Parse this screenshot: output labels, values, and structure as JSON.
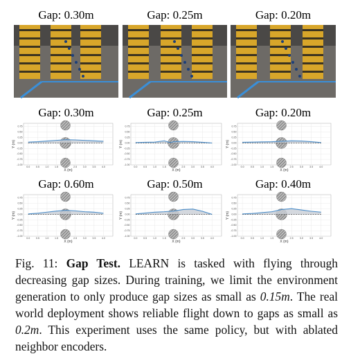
{
  "photos": [
    {
      "title": "Gap: 0.30m"
    },
    {
      "title": "Gap: 0.25m"
    },
    {
      "title": "Gap: 0.20m"
    }
  ],
  "chart_data": [
    {
      "type": "line",
      "title": "Gap: 0.30m",
      "xlabel": "X (m)",
      "ylabel": "Y (m)",
      "xlim": [
        -0.25,
        4.5
      ],
      "ylim": [
        -1.0,
        0.9
      ],
      "xticks": [
        {
          "value": 0,
          "label": "0.0"
        },
        {
          "value": 0.5,
          "label": "0.5"
        },
        {
          "value": 1,
          "label": "1.0"
        },
        {
          "value": 1.5,
          "label": "1.5"
        },
        {
          "value": 2,
          "label": "2.0"
        },
        {
          "value": 2.5,
          "label": "2.5"
        },
        {
          "value": 3,
          "label": "3.0"
        },
        {
          "value": 3.5,
          "label": "3.5"
        },
        {
          "value": 4,
          "label": "4.0"
        }
      ],
      "yticks": [
        {
          "value": 0.75,
          "label": "0.75"
        },
        {
          "value": 0.5,
          "label": "0.50"
        },
        {
          "value": 0.25,
          "label": "0.25"
        },
        {
          "value": 0,
          "label": "0.00"
        },
        {
          "value": -0.25,
          "label": "-0.25"
        },
        {
          "value": -0.5,
          "label": "-0.50"
        },
        {
          "value": -0.75,
          "label": "-0.75"
        },
        {
          "value": -1.0,
          "label": "-1.00"
        }
      ],
      "x": [
        0,
        0.5,
        1,
        1.5,
        2,
        2.5,
        3,
        3.5,
        4
      ],
      "series": [
        {
          "color": "#4a8cc8",
          "values": [
            0.04,
            0.06,
            0.09,
            0.12,
            0.15,
            0.14,
            0.12,
            0.1,
            0.08
          ]
        }
      ]
    },
    {
      "type": "line",
      "title": "Gap: 0.25m",
      "xlabel": "X (m)",
      "ylabel": "Y (m)",
      "xlim": [
        -0.25,
        4.5
      ],
      "ylim": [
        -1.0,
        0.9
      ],
      "xticks": [
        {
          "value": 0,
          "label": "0.0"
        },
        {
          "value": 0.5,
          "label": "0.5"
        },
        {
          "value": 1,
          "label": "1.0"
        },
        {
          "value": 1.5,
          "label": "1.5"
        },
        {
          "value": 2,
          "label": "2.0"
        },
        {
          "value": 2.5,
          "label": "2.5"
        },
        {
          "value": 3,
          "label": "3.0"
        },
        {
          "value": 3.5,
          "label": "3.5"
        },
        {
          "value": 4,
          "label": "4.0"
        }
      ],
      "yticks": [
        {
          "value": 0.75,
          "label": "0.75"
        },
        {
          "value": 0.5,
          "label": "0.50"
        },
        {
          "value": 0.25,
          "label": "0.25"
        },
        {
          "value": 0,
          "label": "0.00"
        },
        {
          "value": -0.25,
          "label": "-0.25"
        },
        {
          "value": -0.5,
          "label": "-0.50"
        },
        {
          "value": -0.75,
          "label": "-0.75"
        },
        {
          "value": -1.0,
          "label": "-1.00"
        }
      ],
      "x": [
        0,
        0.5,
        1,
        1.5,
        1.8,
        2,
        2.5,
        3,
        3.5,
        4
      ],
      "series": [
        {
          "color": "#4a8cc8",
          "values": [
            0.02,
            0.03,
            0.04,
            0.1,
            0.02,
            0.06,
            0.07,
            0.06,
            0.03,
            0.0
          ]
        }
      ]
    },
    {
      "type": "line",
      "title": "Gap: 0.20m",
      "xlabel": "X (m)",
      "ylabel": "Y (m)",
      "xlim": [
        -0.25,
        4.5
      ],
      "ylim": [
        -1.0,
        0.9
      ],
      "xticks": [
        {
          "value": 0,
          "label": "0.0"
        },
        {
          "value": 0.5,
          "label": "0.5"
        },
        {
          "value": 1,
          "label": "1.0"
        },
        {
          "value": 1.5,
          "label": "1.5"
        },
        {
          "value": 2,
          "label": "2.0"
        },
        {
          "value": 2.5,
          "label": "2.5"
        },
        {
          "value": 3,
          "label": "3.0"
        },
        {
          "value": 3.5,
          "label": "3.5"
        },
        {
          "value": 4,
          "label": "4.0"
        }
      ],
      "yticks": [
        {
          "value": 0.75,
          "label": "0.75"
        },
        {
          "value": 0.5,
          "label": "0.50"
        },
        {
          "value": 0.25,
          "label": "0.25"
        },
        {
          "value": 0,
          "label": "0.00"
        },
        {
          "value": -0.25,
          "label": "-0.25"
        },
        {
          "value": -0.5,
          "label": "-0.50"
        },
        {
          "value": -0.75,
          "label": "-0.75"
        },
        {
          "value": -1.0,
          "label": "-1.00"
        }
      ],
      "x": [
        0,
        0.5,
        1,
        1.5,
        2,
        2.5,
        3,
        3.5,
        4
      ],
      "series": [
        {
          "color": "#4a8cc8",
          "values": [
            0.03,
            0.04,
            0.05,
            0.06,
            0.08,
            0.1,
            0.09,
            0.06,
            0.02
          ]
        }
      ]
    },
    {
      "type": "line",
      "title": "Gap: 0.60m",
      "xlabel": "X (m)",
      "ylabel": "Y (m)",
      "xlim": [
        -0.25,
        4.5
      ],
      "ylim": [
        -1.0,
        0.9
      ],
      "xticks": [
        {
          "value": 0,
          "label": "0.0"
        },
        {
          "value": 0.5,
          "label": "0.5"
        },
        {
          "value": 1,
          "label": "1.0"
        },
        {
          "value": 1.5,
          "label": "1.5"
        },
        {
          "value": 2,
          "label": "2.0"
        },
        {
          "value": 2.5,
          "label": "2.5"
        },
        {
          "value": 3,
          "label": "3.0"
        },
        {
          "value": 3.5,
          "label": "3.5"
        },
        {
          "value": 4,
          "label": "4.0"
        }
      ],
      "yticks": [
        {
          "value": 0.75,
          "label": "0.75"
        },
        {
          "value": 0.5,
          "label": "0.50"
        },
        {
          "value": 0.25,
          "label": "0.25"
        },
        {
          "value": 0,
          "label": "0.00"
        },
        {
          "value": -0.25,
          "label": "-0.25"
        },
        {
          "value": -0.5,
          "label": "-0.50"
        },
        {
          "value": -0.75,
          "label": "-0.75"
        },
        {
          "value": -1.0,
          "label": "-1.00"
        }
      ],
      "x": [
        0,
        0.5,
        1,
        1.5,
        2,
        2.5,
        3,
        3.5,
        4
      ],
      "series": [
        {
          "color": "#4a8cc8",
          "values": [
            0.02,
            0.05,
            0.1,
            0.15,
            0.18,
            0.16,
            0.12,
            0.1,
            0.05
          ]
        }
      ]
    },
    {
      "type": "line",
      "title": "Gap: 0.50m",
      "xlabel": "X (m)",
      "ylabel": "Y (m)",
      "xlim": [
        -0.25,
        4.5
      ],
      "ylim": [
        -1.0,
        0.9
      ],
      "xticks": [
        {
          "value": 0,
          "label": "0.0"
        },
        {
          "value": 0.5,
          "label": "0.5"
        },
        {
          "value": 1,
          "label": "1.0"
        },
        {
          "value": 1.5,
          "label": "1.5"
        },
        {
          "value": 2,
          "label": "2.0"
        },
        {
          "value": 2.5,
          "label": "2.5"
        },
        {
          "value": 3,
          "label": "3.0"
        },
        {
          "value": 3.5,
          "label": "3.5"
        },
        {
          "value": 4,
          "label": "4.0"
        }
      ],
      "yticks": [
        {
          "value": 0.75,
          "label": "0.75"
        },
        {
          "value": 0.5,
          "label": "0.50"
        },
        {
          "value": 0.25,
          "label": "0.25"
        },
        {
          "value": 0,
          "label": "0.00"
        },
        {
          "value": -0.25,
          "label": "-0.25"
        },
        {
          "value": -0.5,
          "label": "-0.50"
        },
        {
          "value": -0.75,
          "label": "-0.75"
        },
        {
          "value": -1.0,
          "label": "-1.00"
        }
      ],
      "x": [
        0,
        0.5,
        1,
        1.5,
        2,
        2.5,
        3,
        3.5,
        4
      ],
      "series": [
        {
          "color": "#4a8cc8",
          "values": [
            0.02,
            0.06,
            0.1,
            0.12,
            0.15,
            0.22,
            0.24,
            0.14,
            0.0
          ]
        }
      ]
    },
    {
      "type": "line",
      "title": "Gap: 0.40m",
      "xlabel": "X (m)",
      "ylabel": "Y (m)",
      "xlim": [
        -0.25,
        4.5
      ],
      "ylim": [
        -1.0,
        0.9
      ],
      "xticks": [
        {
          "value": 0,
          "label": "0.0"
        },
        {
          "value": 0.5,
          "label": "0.5"
        },
        {
          "value": 1,
          "label": "1.0"
        },
        {
          "value": 1.5,
          "label": "1.5"
        },
        {
          "value": 2,
          "label": "2.0"
        },
        {
          "value": 2.5,
          "label": "2.5"
        },
        {
          "value": 3,
          "label": "3.0"
        },
        {
          "value": 3.5,
          "label": "3.5"
        },
        {
          "value": 4,
          "label": "4.0"
        }
      ],
      "yticks": [
        {
          "value": 0.75,
          "label": "0.75"
        },
        {
          "value": 0.5,
          "label": "0.50"
        },
        {
          "value": 0.25,
          "label": "0.25"
        },
        {
          "value": 0,
          "label": "0.00"
        },
        {
          "value": -0.25,
          "label": "-0.25"
        },
        {
          "value": -0.5,
          "label": "-0.50"
        },
        {
          "value": -0.75,
          "label": "-0.75"
        },
        {
          "value": -1.0,
          "label": "-1.00"
        }
      ],
      "x": [
        0,
        0.5,
        1,
        1.5,
        2,
        2.5,
        3,
        3.5,
        4
      ],
      "series": [
        {
          "color": "#4a8cc8",
          "values": [
            0.02,
            0.04,
            0.08,
            0.12,
            0.22,
            0.26,
            0.2,
            0.14,
            0.1
          ]
        }
      ]
    }
  ],
  "caption": {
    "label": "Fig. 11:",
    "heading": "Gap Test.",
    "text1": "LEARN is tasked with flying through decreasing gap sizes. During training, we limit the environment generation to only produce gap sizes as small as",
    "math1": "0.15m",
    "text2": ". The real world deployment shows reliable flight down to gaps as small as",
    "math2": "0.2m",
    "text3": ". This experiment uses the same policy, but with ablated neighbor encoders."
  }
}
